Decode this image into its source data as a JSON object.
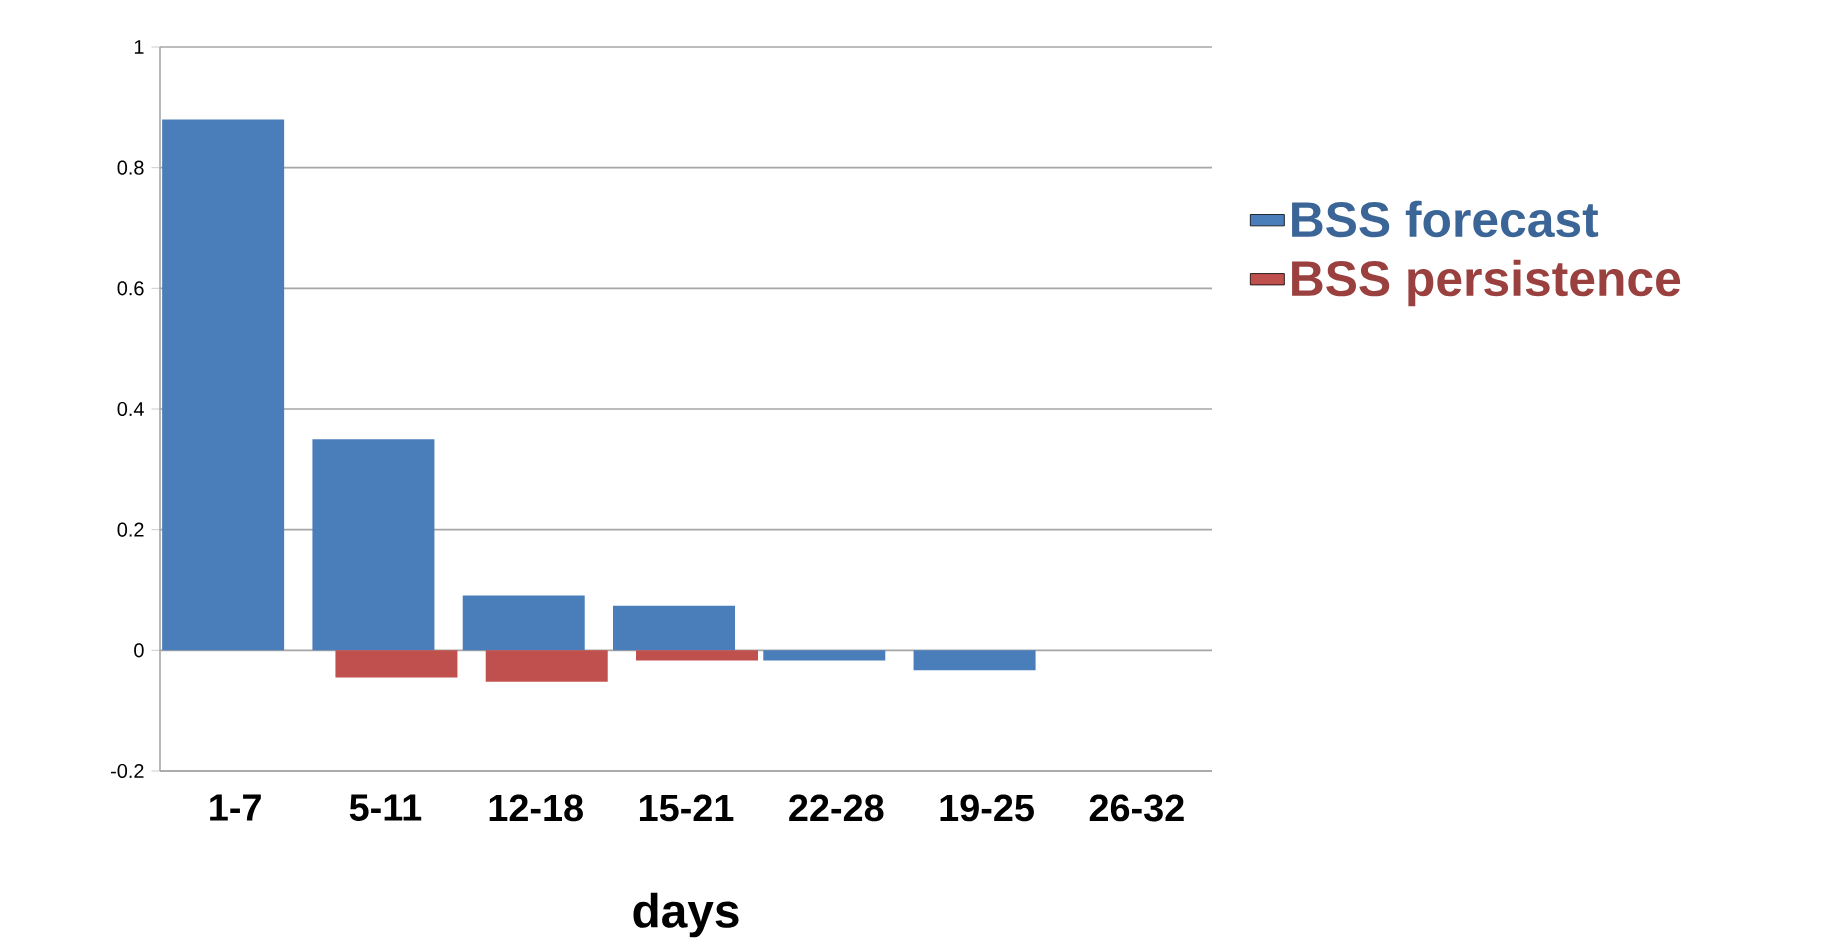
{
  "chart_data": {
    "type": "bar",
    "xlabel": "days",
    "categories": [
      "1-7",
      "5-11",
      "12-18",
      "15-21",
      "22-28",
      "19-25",
      "26-32"
    ],
    "series": [
      {
        "name": "BSS forecast",
        "color": "#4a7ebb",
        "values": [
          0.88,
          0.35,
          0.091,
          0.074,
          -0.017,
          -0.033,
          null
        ]
      },
      {
        "name": "BSS persistence",
        "color": "#c0504d",
        "values": [
          null,
          -0.045,
          -0.052,
          -0.017,
          null,
          null,
          null
        ]
      }
    ],
    "ylim": [
      -0.2,
      1
    ],
    "yticks": [
      -0.2,
      0,
      0.2,
      0.4,
      0.6,
      0.8,
      1
    ],
    "grid": "y",
    "legend": "right"
  }
}
